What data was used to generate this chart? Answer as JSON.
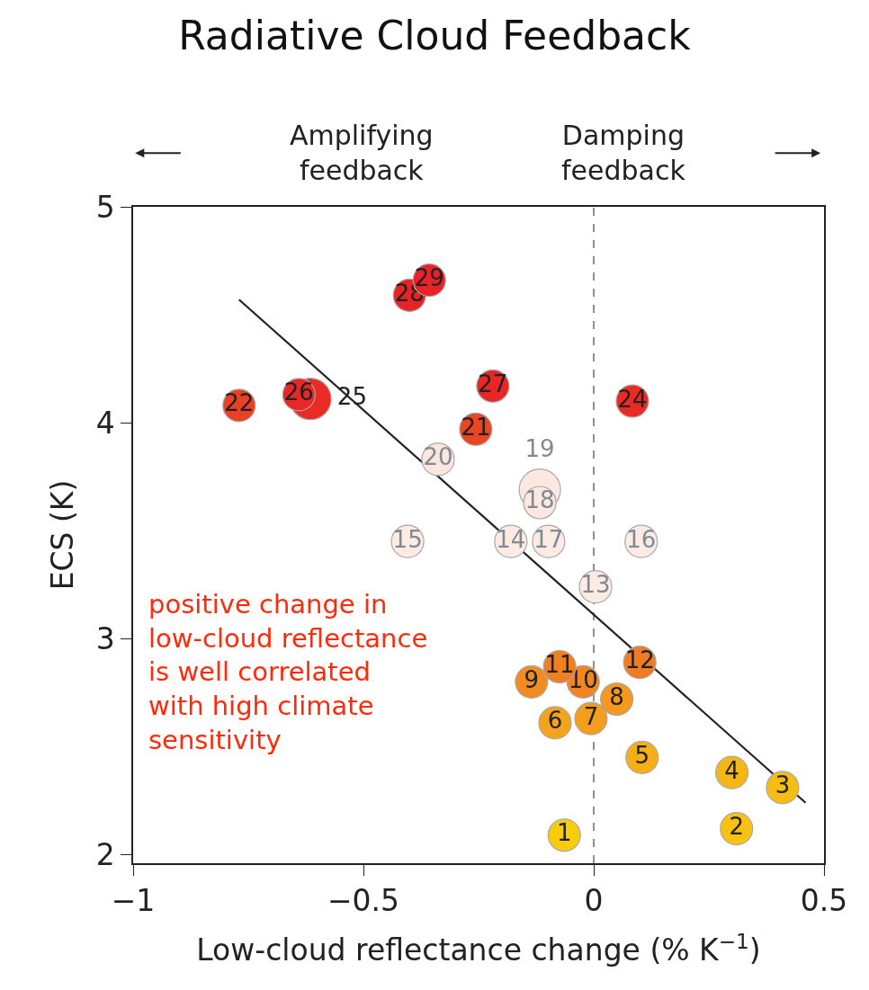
{
  "chart_data": {
    "type": "scatter",
    "title": "Radiative Cloud Feedback",
    "xlabel": "Low-cloud reflectance change (% K$^{−1}$)",
    "ylabel": "ECS (K)",
    "annotations": [
      "Amplifying\nfeedback",
      "Damping\nfeedback",
      "positive change in\nlow-cloud reflectance\nis well correlated\nwith high climate\nsensitivity"
    ],
    "xlim": [
      -1,
      0.5
    ],
    "xticks": [
      -1,
      -0.5,
      0,
      0.5
    ],
    "ylim": [
      1.96,
      5
    ],
    "yticks": [
      2,
      3,
      4,
      5
    ],
    "grid": false,
    "marker": "circle",
    "ref_lines": [
      {
        "axis": "x",
        "value": 0,
        "label": null,
        "color": "#555555",
        "line_style": "dashed"
      }
    ],
    "series": [
      {
        "type": "line",
        "x": [
          -0.77,
          0.46
        ],
        "values": [
          4.57,
          2.24
        ],
        "color": "#222222",
        "line_style": "solid",
        "marker": "none"
      },
      {
        "name": "1",
        "x": [
          -0.064
        ],
        "values": [
          2.09
        ],
        "color": "#f9cb0d"
      },
      {
        "name": "2",
        "x": [
          0.31
        ],
        "values": [
          2.12
        ],
        "color": "#f8c212"
      },
      {
        "name": "3",
        "x": [
          0.41
        ],
        "values": [
          2.31
        ],
        "color": "#f6bd14"
      },
      {
        "name": "4",
        "x": [
          0.3
        ],
        "values": [
          2.38
        ],
        "color": "#f5b716"
      },
      {
        "name": "5",
        "x": [
          0.105
        ],
        "values": [
          2.45
        ],
        "color": "#f5b018"
      },
      {
        "name": "6",
        "x": [
          -0.084
        ],
        "values": [
          2.61
        ],
        "color": "#f4a31c"
      },
      {
        "name": "7",
        "x": [
          -0.006
        ],
        "values": [
          2.63
        ],
        "color": "#f49e1d"
      },
      {
        "name": "8",
        "x": [
          0.05
        ],
        "values": [
          2.72
        ],
        "color": "#f4981f"
      },
      {
        "name": "9",
        "x": [
          -0.135
        ],
        "values": [
          2.8
        ],
        "color": "#f28c21"
      },
      {
        "name": "10",
        "x": [
          -0.023
        ],
        "values": [
          2.8
        ],
        "color": "#f28522"
      },
      {
        "name": "11",
        "x": [
          -0.074
        ],
        "values": [
          2.87
        ],
        "color": "#f07f22"
      },
      {
        "name": "12",
        "x": [
          0.1
        ],
        "values": [
          2.89
        ],
        "color": "#f07b22"
      },
      {
        "name": "13",
        "x": [
          0.004
        ],
        "values": [
          3.24
        ],
        "color": "#fcebe2"
      },
      {
        "name": "14",
        "x": [
          -0.18
        ],
        "values": [
          3.45
        ],
        "color": "#fcebe2"
      },
      {
        "name": "15",
        "x": [
          -0.404
        ],
        "values": [
          3.45
        ],
        "color": "#fcebe2"
      },
      {
        "name": "16",
        "x": [
          0.103
        ],
        "values": [
          3.45
        ],
        "color": "#fcebe2"
      },
      {
        "name": "17",
        "x": [
          -0.098
        ],
        "values": [
          3.45
        ],
        "color": "#fcebe2"
      },
      {
        "name": "19",
        "x": [
          -0.117
        ],
        "values": [
          3.69
        ],
        "color": "#fce8e0"
      },
      {
        "name": "18",
        "x": [
          -0.117
        ],
        "values": [
          3.63
        ],
        "color": "#fce8e0"
      },
      {
        "name": "20",
        "x": [
          -0.338
        ],
        "values": [
          3.83
        ],
        "color": "#fce6dd"
      },
      {
        "name": "21",
        "x": [
          -0.256
        ],
        "values": [
          3.97
        ],
        "color": "#ec4522"
      },
      {
        "name": "22",
        "x": [
          -0.77
        ],
        "values": [
          4.08
        ],
        "color": "#eb4024"
      },
      {
        "name": "24",
        "x": [
          0.084
        ],
        "values": [
          4.1
        ],
        "color": "#ea2a24"
      },
      {
        "name": "25",
        "x": [
          -0.615
        ],
        "values": [
          4.11
        ],
        "color": "#ea2a24"
      },
      {
        "name": "26",
        "x": [
          -0.64
        ],
        "values": [
          4.13
        ],
        "color": "#e92726"
      },
      {
        "name": "27",
        "x": [
          -0.219
        ],
        "values": [
          4.17
        ],
        "color": "#e92526"
      },
      {
        "name": "28",
        "x": [
          -0.4
        ],
        "values": [
          4.59
        ],
        "color": "#e82326"
      },
      {
        "name": "29",
        "x": [
          -0.357
        ],
        "values": [
          4.66
        ],
        "color": "#e82226"
      }
    ]
  }
}
